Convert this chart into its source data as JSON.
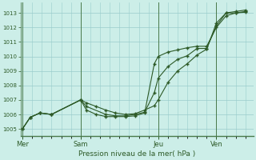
{
  "xlabel": "Pression niveau de la mer( hPa )",
  "background_color": "#cceee8",
  "grid_color": "#99cccc",
  "line_color": "#2d5a27",
  "ylim": [
    1004.5,
    1013.7
  ],
  "yticks": [
    1005,
    1006,
    1007,
    1008,
    1009,
    1010,
    1011,
    1012,
    1013
  ],
  "day_labels": [
    "Mer",
    "Sam",
    "Jeu",
    "Ven"
  ],
  "day_positions": [
    0.0,
    3.0,
    7.0,
    10.0
  ],
  "xlim": [
    -0.1,
    11.9
  ],
  "series1": [
    [
      0.0,
      1005.0
    ],
    [
      0.4,
      1005.8
    ],
    [
      0.9,
      1006.1
    ],
    [
      1.5,
      1006.0
    ],
    [
      3.0,
      1007.0
    ],
    [
      3.3,
      1006.8
    ],
    [
      3.8,
      1006.55
    ],
    [
      4.3,
      1006.3
    ],
    [
      4.8,
      1006.1
    ],
    [
      5.3,
      1006.0
    ],
    [
      5.8,
      1006.05
    ],
    [
      6.3,
      1006.3
    ],
    [
      6.8,
      1006.6
    ],
    [
      7.0,
      1007.0
    ],
    [
      7.5,
      1008.2
    ],
    [
      8.0,
      1009.0
    ],
    [
      8.5,
      1009.5
    ],
    [
      9.0,
      1010.1
    ],
    [
      9.5,
      1010.5
    ],
    [
      10.0,
      1012.3
    ],
    [
      10.5,
      1013.0
    ],
    [
      11.0,
      1013.1
    ],
    [
      11.5,
      1013.2
    ]
  ],
  "series2": [
    [
      0.0,
      1005.0
    ],
    [
      0.4,
      1005.8
    ],
    [
      0.9,
      1006.1
    ],
    [
      1.5,
      1006.0
    ],
    [
      3.0,
      1007.0
    ],
    [
      3.3,
      1006.55
    ],
    [
      4.3,
      1006.0
    ],
    [
      4.8,
      1005.9
    ],
    [
      5.3,
      1005.9
    ],
    [
      5.8,
      1006.0
    ],
    [
      6.3,
      1006.15
    ],
    [
      6.8,
      1007.5
    ],
    [
      7.0,
      1008.5
    ],
    [
      7.5,
      1009.3
    ],
    [
      8.0,
      1009.8
    ],
    [
      8.5,
      1010.05
    ],
    [
      9.0,
      1010.55
    ],
    [
      9.5,
      1010.55
    ],
    [
      10.0,
      1012.1
    ],
    [
      10.5,
      1013.0
    ],
    [
      11.0,
      1013.0
    ],
    [
      11.5,
      1013.1
    ]
  ],
  "series3": [
    [
      0.0,
      1005.0
    ],
    [
      0.4,
      1005.8
    ],
    [
      0.9,
      1006.1
    ],
    [
      1.5,
      1006.0
    ],
    [
      3.0,
      1007.0
    ],
    [
      3.3,
      1006.3
    ],
    [
      3.8,
      1006.0
    ],
    [
      4.3,
      1005.85
    ],
    [
      4.8,
      1005.85
    ],
    [
      5.3,
      1005.85
    ],
    [
      5.8,
      1005.9
    ],
    [
      6.3,
      1006.1
    ],
    [
      6.8,
      1009.5
    ],
    [
      7.0,
      1010.0
    ],
    [
      7.5,
      1010.3
    ],
    [
      8.0,
      1010.45
    ],
    [
      8.5,
      1010.6
    ],
    [
      9.0,
      1010.7
    ],
    [
      9.5,
      1010.7
    ],
    [
      10.0,
      1012.0
    ],
    [
      10.5,
      1012.8
    ],
    [
      11.0,
      1013.0
    ],
    [
      11.5,
      1013.05
    ]
  ]
}
